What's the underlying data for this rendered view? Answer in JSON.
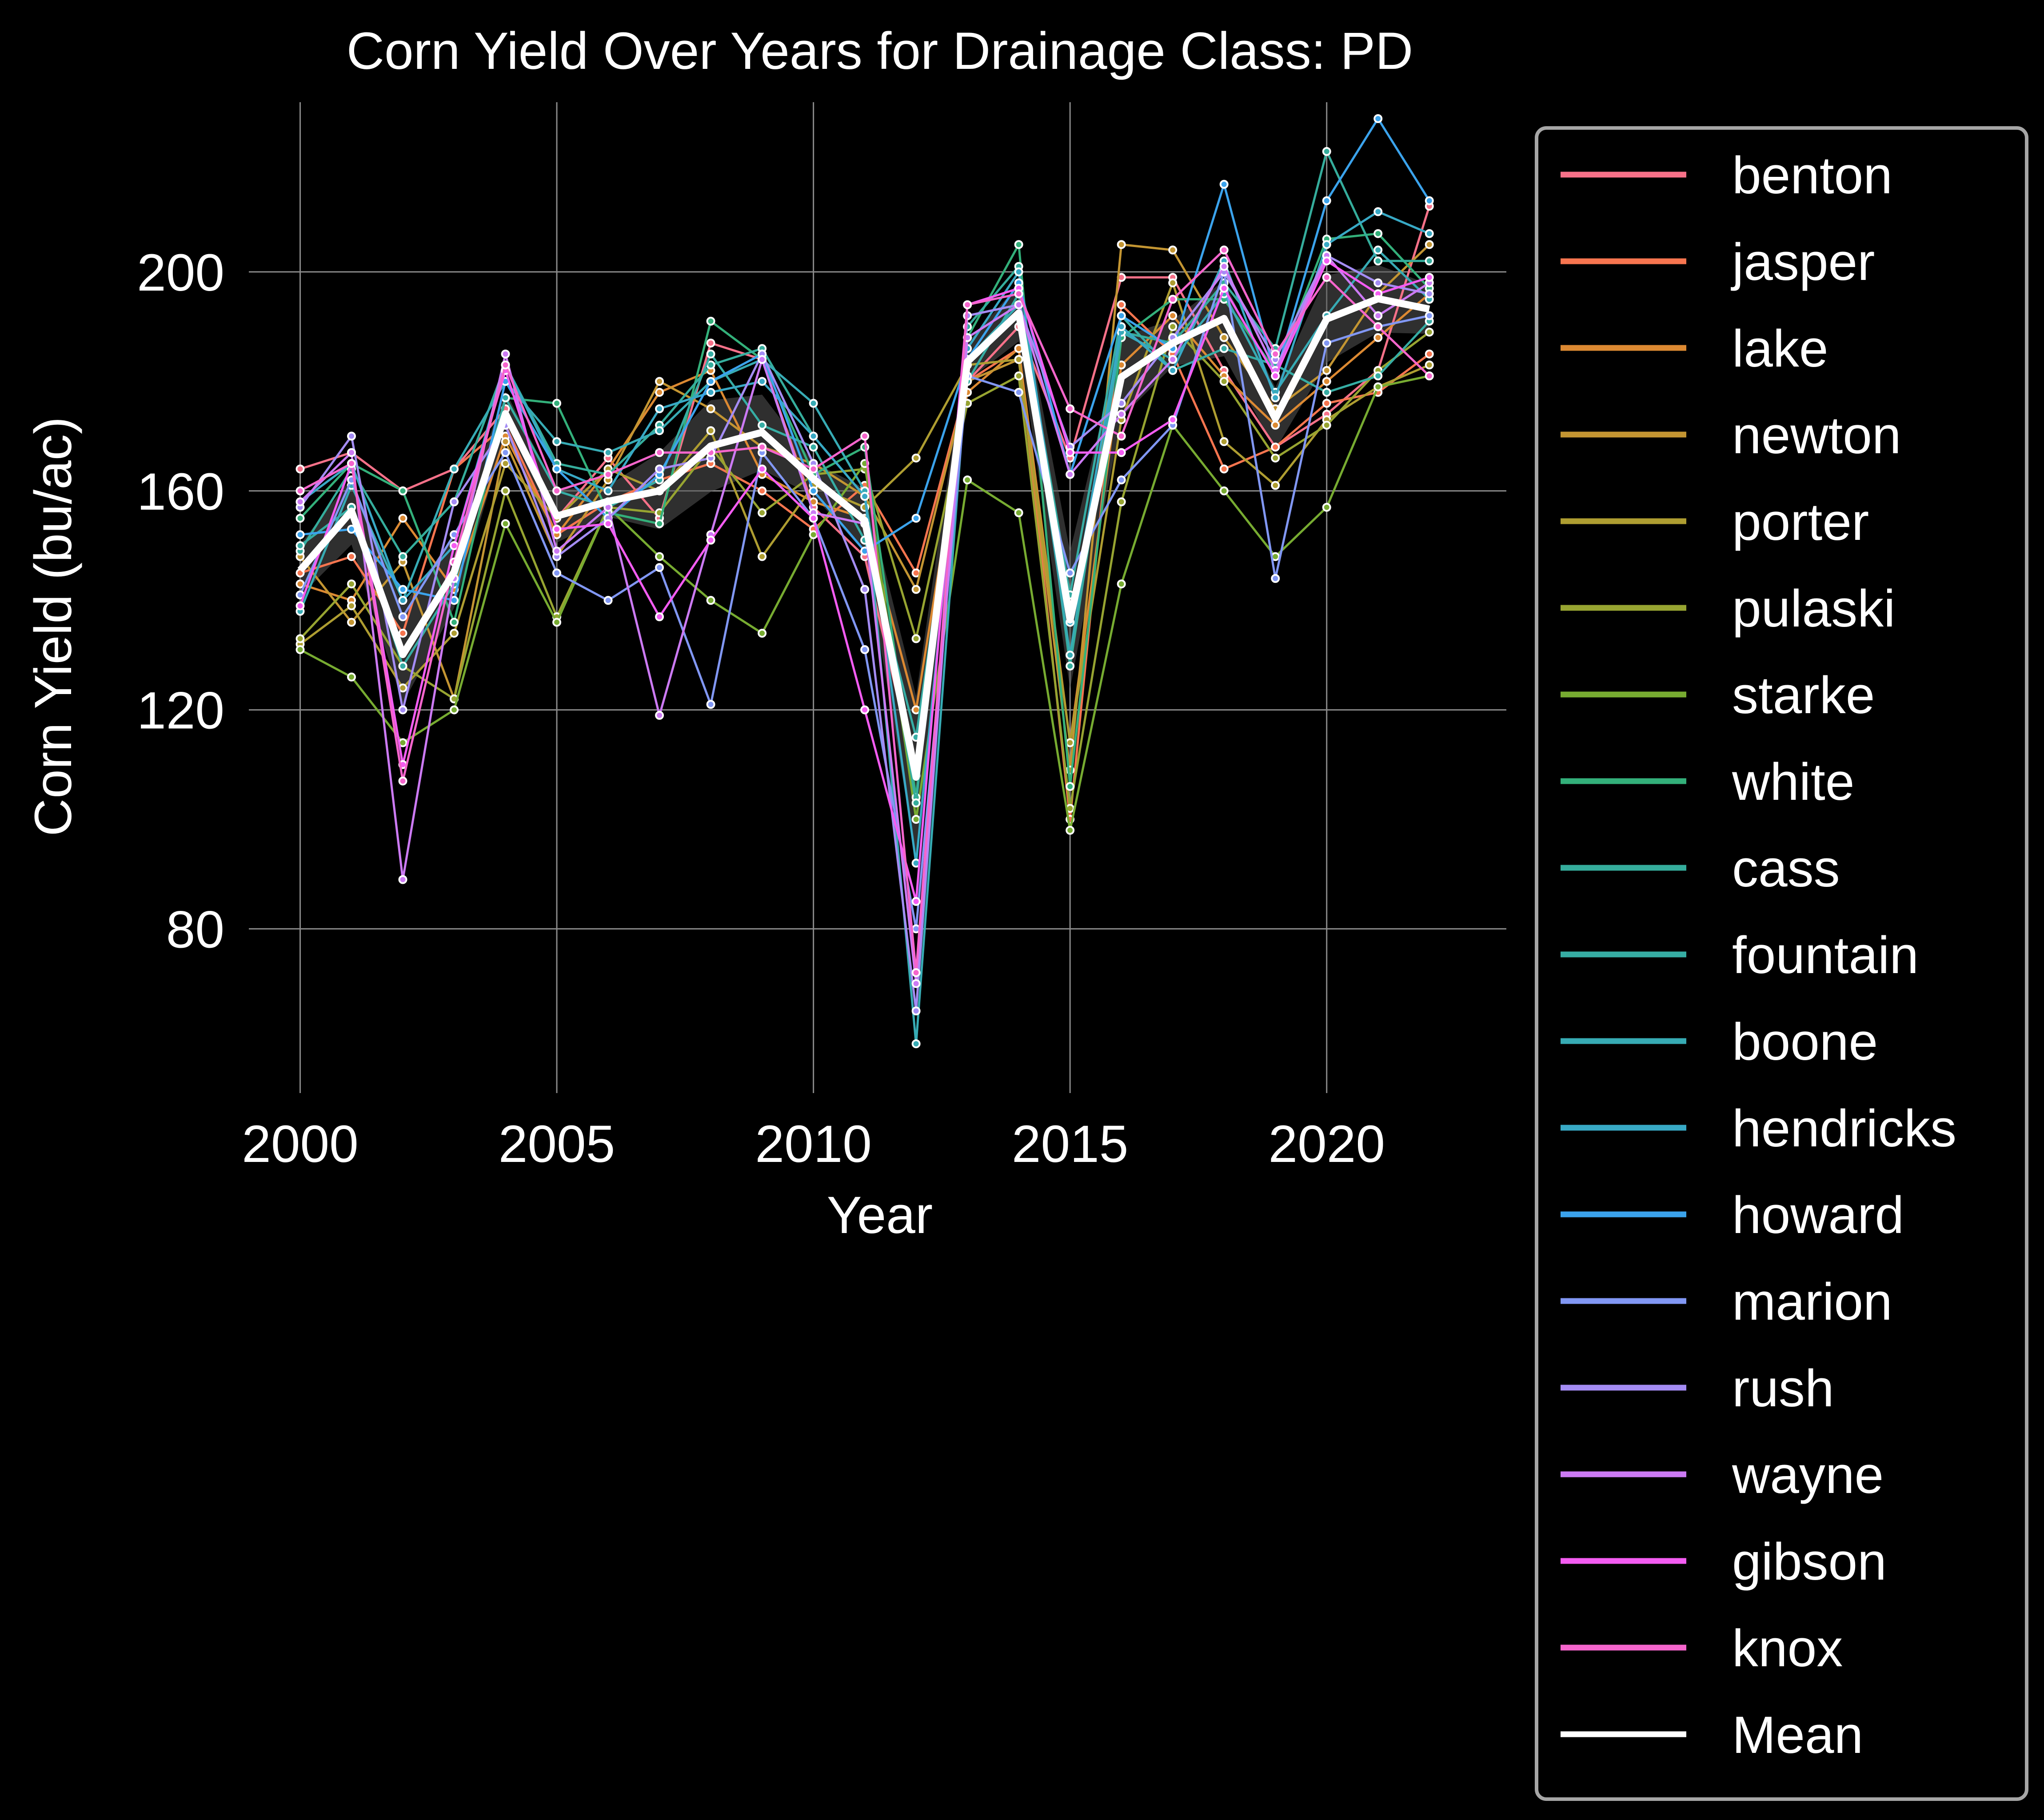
{
  "chart_data": {
    "type": "line",
    "title": "Corn Yield Over Years for Drainage Class: PD",
    "xlabel": "Year",
    "ylabel": "Corn Yield (bu/ac)",
    "xlim": [
      1999,
      2023.5
    ],
    "ylim": [
      50,
      231
    ],
    "xticks": [
      2000,
      2005,
      2010,
      2015,
      2020
    ],
    "yticks": [
      80,
      120,
      160,
      200
    ],
    "grid": true,
    "legend_position": "outside-right",
    "x": [
      2000,
      2001,
      2002,
      2003,
      2004,
      2005,
      2006,
      2007,
      2008,
      2009,
      2010,
      2011,
      2012,
      2013,
      2014,
      2015,
      2016,
      2017,
      2018,
      2019,
      2020,
      2021,
      2022
    ],
    "series": [
      {
        "name": "benton",
        "color": "#f77189",
        "values": [
          164,
          167,
          160,
          164,
          175,
          155,
          166,
          155,
          187,
          184,
          157,
          148,
          108,
          180,
          190,
          166,
          199,
          199,
          182,
          168,
          174,
          182,
          212
        ]
      },
      {
        "name": "jasper",
        "color": "#f7754f",
        "values": [
          145,
          148,
          134,
          164,
          172,
          152,
          158,
          162,
          165,
          160,
          153,
          161,
          145,
          180,
          186,
          100,
          194,
          185,
          164,
          168,
          176,
          178,
          185
        ]
      },
      {
        "name": "lake",
        "color": "#dc8932",
        "values": [
          143,
          140,
          155,
          142,
          170,
          152,
          164,
          178,
          182,
          163,
          158,
          155,
          120,
          178,
          186,
          114,
          183,
          192,
          181,
          172,
          180,
          188,
          196
        ]
      },
      {
        "name": "newton",
        "color": "#c39532",
        "values": [
          148,
          136,
          147,
          122,
          169,
          148,
          162,
          180,
          175,
          168,
          165,
          159,
          142,
          180,
          184,
          109,
          205,
          204,
          188,
          175,
          182,
          196,
          205
        ]
      },
      {
        "name": "porter",
        "color": "#ae9d31",
        "values": [
          132,
          139,
          124,
          134,
          165,
          155,
          164,
          160,
          171,
          148,
          161,
          157,
          166,
          183,
          184,
          114,
          173,
          198,
          169,
          161,
          173,
          179,
          183
        ]
      },
      {
        "name": "pulaski",
        "color": "#97a431",
        "values": [
          133,
          143,
          128,
          122,
          160,
          137,
          157,
          156,
          168,
          156,
          163,
          164,
          133,
          176,
          181,
          102,
          158,
          190,
          180,
          166,
          172,
          182,
          189
        ]
      },
      {
        "name": "starke",
        "color": "#77ab31",
        "values": [
          131,
          126,
          114,
          120,
          154,
          136,
          157,
          148,
          140,
          134,
          152,
          165,
          100,
          162,
          156,
          98,
          143,
          172,
          160,
          148,
          157,
          179,
          181
        ]
      },
      {
        "name": "white",
        "color": "#33b07a",
        "values": [
          155,
          165,
          160,
          136,
          177,
          176,
          156,
          154,
          191,
          184,
          163,
          168,
          104,
          188,
          205,
          106,
          188,
          195,
          195,
          182,
          206,
          207,
          197
        ]
      },
      {
        "name": "cass",
        "color": "#35ad9c",
        "values": [
          149,
          164,
          148,
          158,
          183,
          165,
          163,
          172,
          183,
          186,
          170,
          159,
          103,
          190,
          201,
          128,
          189,
          187,
          198,
          186,
          222,
          202,
          202
        ]
      },
      {
        "name": "fountain",
        "color": "#36ada4",
        "values": [
          150,
          157,
          128,
          143,
          177,
          160,
          157,
          162,
          185,
          172,
          168,
          151,
          115,
          180,
          196,
          141,
          192,
          182,
          186,
          183,
          178,
          181,
          191
        ]
      },
      {
        "name": "boone",
        "color": "#37abb4",
        "values": [
          138,
          161,
          140,
          164,
          180,
          169,
          167,
          171,
          180,
          184,
          176,
          160,
          59,
          184,
          194,
          130,
          189,
          184,
          196,
          178,
          192,
          204,
          195
        ]
      },
      {
        "name": "hendricks",
        "color": "#38a9c5",
        "values": [
          158,
          165,
          140,
          150,
          183,
          164,
          160,
          175,
          178,
          180,
          170,
          159,
          92,
          186,
          200,
          136,
          190,
          182,
          202,
          177,
          205,
          211,
          207
        ]
      },
      {
        "name": "howard",
        "color": "#3ba3ec",
        "values": [
          152,
          153,
          142,
          140,
          180,
          164,
          155,
          163,
          180,
          185,
          160,
          149,
          155,
          184,
          198,
          163,
          192,
          186,
          216,
          181,
          213,
          228,
          213
        ]
      },
      {
        "name": "marion",
        "color": "#8197f4",
        "values": [
          141,
          162,
          137,
          152,
          167,
          145,
          140,
          146,
          121,
          167,
          155,
          131,
          80,
          181,
          178,
          145,
          162,
          172,
          200,
          144,
          187,
          190,
          192
        ]
      },
      {
        "name": "rush",
        "color": "#a48cf4",
        "values": [
          157,
          170,
          120,
          158,
          172,
          148,
          155,
          164,
          166,
          185,
          165,
          142,
          65,
          192,
          194,
          168,
          176,
          188,
          200,
          184,
          203,
          198,
          196
        ]
      },
      {
        "name": "wayne",
        "color": "#cc7af4",
        "values": [
          158,
          167,
          89,
          144,
          185,
          149,
          157,
          119,
          152,
          184,
          156,
          154,
          70,
          188,
          194,
          163,
          174,
          184,
          201,
          182,
          203,
          192,
          198
        ]
      },
      {
        "name": "gibson",
        "color": "#f45cf2",
        "values": [
          139,
          165,
          110,
          150,
          182,
          153,
          154,
          137,
          151,
          164,
          155,
          120,
          85,
          194,
          197,
          167,
          167,
          173,
          197,
          181,
          202,
          196,
          199
        ]
      },
      {
        "name": "knox",
        "color": "#f565cc",
        "values": [
          160,
          165,
          107,
          147,
          183,
          160,
          163,
          167,
          167,
          168,
          164,
          170,
          72,
          194,
          196,
          175,
          170,
          195,
          204,
          185,
          199,
          190,
          181
        ]
      }
    ],
    "mean": {
      "name": "Mean",
      "color": "#ffffff",
      "values": [
        145.5,
        156.3,
        130.1,
        145.2,
        174.1,
        155.4,
        158.1,
        160.0,
        168.2,
        170.7,
        162.2,
        154.6,
        107.7,
        183.6,
        192.5,
        136.4,
        180.8,
        187.0,
        191.5,
        173.2,
        191.4,
        195.1,
        193.2
      ]
    },
    "legend_entries": [
      "benton",
      "jasper",
      "lake",
      "newton",
      "porter",
      "pulaski",
      "starke",
      "white",
      "cass",
      "fountain",
      "boone",
      "hendricks",
      "howard",
      "marion",
      "rush",
      "wayne",
      "gibson",
      "knox",
      "Mean"
    ]
  }
}
